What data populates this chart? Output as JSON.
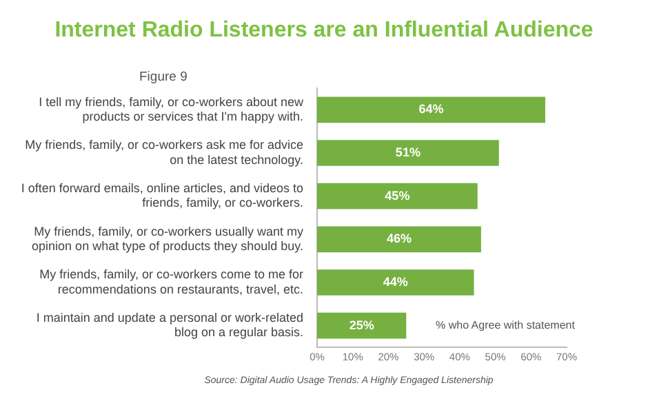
{
  "chart_data": {
    "type": "bar",
    "orientation": "horizontal",
    "title": "Internet Radio Listeners are an Influential Audience",
    "subtitle": "Figure 9",
    "categories": [
      "I tell my friends, family, or co-workers about new products or services that I'm happy with.",
      "My friends, family, or co-workers ask me for advice on the latest technology.",
      "I often forward emails, online articles, and videos to friends, family, or co-workers.",
      "My friends, family, or co-workers usually want my opinion on what type of products they should buy.",
      "My friends, family, or co-workers come to me for recommendations on restaurants, travel, etc.",
      "I maintain and update a personal or work-related blog on a regular basis."
    ],
    "values": [
      64,
      51,
      45,
      46,
      44,
      25
    ],
    "color": "#76b041",
    "value_labels": [
      "64%",
      "51%",
      "45%",
      "46%",
      "44%",
      "25%"
    ],
    "xlim": [
      0,
      70
    ],
    "xticks": [
      {
        "value": 0,
        "label": "0%"
      },
      {
        "value": 10,
        "label": "10%"
      },
      {
        "value": 20,
        "label": "20%"
      },
      {
        "value": 30,
        "label": "30%"
      },
      {
        "value": 40,
        "label": "40%"
      },
      {
        "value": 50,
        "label": "50%"
      },
      {
        "value": 60,
        "label": "60%"
      },
      {
        "value": 70,
        "label": "70%"
      }
    ],
    "grid": false,
    "legend": false,
    "annotations": [
      "% who Agree with statement",
      "Source: Digital Audio Usage Trends: A Highly Engaged Listenership"
    ]
  }
}
